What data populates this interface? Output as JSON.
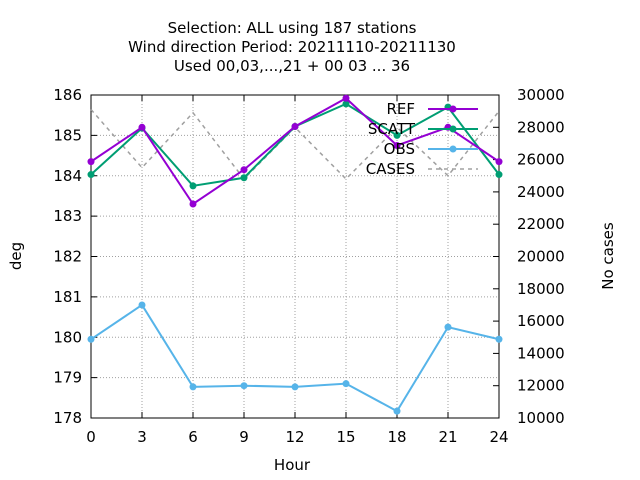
{
  "chart_data": {
    "type": "line",
    "title": [
      "Selection: ALL using   187 stations",
      "Wind direction   Period: 20211110-20211130",
      "Used  00,03,...,21  + 00 03 ... 36"
    ],
    "xlabel": "Hour",
    "ylabel": "deg",
    "y2label": "No cases",
    "x": [
      0,
      3,
      6,
      9,
      12,
      15,
      18,
      21,
      24
    ],
    "xlim": [
      0,
      24
    ],
    "ylim": [
      178,
      186
    ],
    "y2lim": [
      10000,
      30000
    ],
    "x_ticks": [
      "0",
      "3",
      "6",
      "9",
      "12",
      "15",
      "18",
      "21",
      "24"
    ],
    "y_ticks": [
      "178",
      "179",
      "180",
      "181",
      "182",
      "183",
      "184",
      "185",
      "186"
    ],
    "y2_ticks": [
      "10000",
      "12000",
      "14000",
      "16000",
      "18000",
      "20000",
      "22000",
      "24000",
      "26000",
      "28000",
      "30000"
    ],
    "grid": true,
    "legend_position": "top-right",
    "series": [
      {
        "name": "REF",
        "axis": "y",
        "color": "#9400d3",
        "style": "solid",
        "marker": true,
        "values": [
          184.35,
          185.2,
          183.3,
          184.15,
          185.22,
          185.92,
          184.75,
          185.2,
          184.35
        ]
      },
      {
        "name": "SCATT",
        "axis": "y",
        "color": "#009e73",
        "style": "solid",
        "marker": true,
        "values": [
          184.03,
          185.18,
          183.75,
          183.95,
          185.22,
          185.78,
          185.0,
          185.7,
          184.03
        ]
      },
      {
        "name": "OBS",
        "axis": "y",
        "color": "#56b4e9",
        "style": "solid",
        "marker": true,
        "values": [
          179.95,
          180.8,
          178.77,
          178.8,
          178.77,
          178.85,
          178.17,
          180.25,
          179.95
        ]
      },
      {
        "name": "CASES",
        "axis": "y2",
        "color": "#a0a0a0",
        "style": "dashed",
        "marker": false,
        "values": [
          29100,
          25500,
          28900,
          24800,
          28000,
          24800,
          28000,
          25000,
          29000
        ]
      }
    ]
  }
}
